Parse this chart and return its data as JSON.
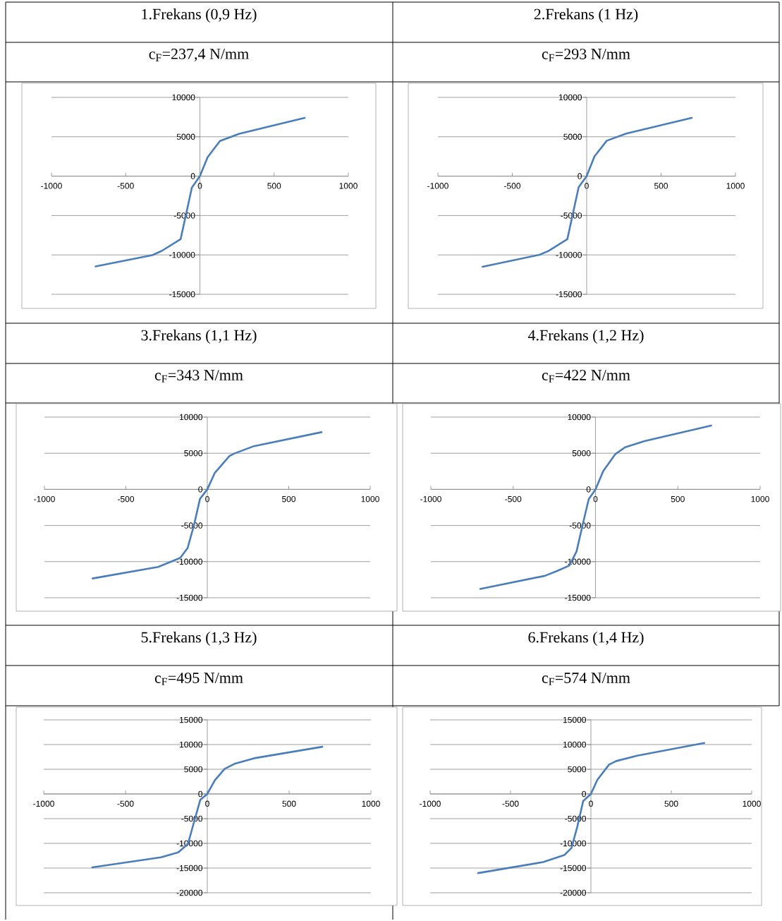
{
  "chart_data": [
    {
      "type": "line",
      "title": "1.Frekans (0,9 Hz)",
      "subtitle": "c$_{F}$=237,4 N/mm",
      "x": [
        -703,
        -320,
        -257,
        -130,
        -54,
        0,
        52,
        135,
        266,
        706
      ],
      "values": [
        -11470,
        -10030,
        -9490,
        -8000,
        -1440,
        0,
        2400,
        4460,
        5390,
        7400
      ],
      "color": "#4a7ebb",
      "xlim": [
        -1000,
        1000
      ],
      "ylim": [
        -15000,
        10000
      ],
      "xticks": [
        -1000,
        -500,
        0,
        500,
        1000
      ],
      "yticks": [
        -15000,
        -10000,
        -5000,
        0,
        5000,
        10000
      ],
      "grid": "y",
      "marker": "none"
    },
    {
      "type": "line",
      "title": "2.Frekans (1 Hz)",
      "subtitle": "c$_{F}$=293 N/mm",
      "x": [
        -700,
        -320,
        -257,
        -130,
        -54,
        0,
        52,
        135,
        266,
        706
      ],
      "values": [
        -11500,
        -10000,
        -9500,
        -8000,
        -1400,
        0,
        2500,
        4500,
        5400,
        7400
      ],
      "color": "#4a7ebb",
      "xlim": [
        -1000,
        1000
      ],
      "ylim": [
        -15000,
        10000
      ],
      "xticks": [
        -1000,
        -500,
        0,
        500,
        1000
      ],
      "yticks": [
        -15000,
        -10000,
        -5000,
        0,
        5000,
        10000
      ],
      "grid": "y",
      "marker": "none"
    },
    {
      "type": "line",
      "title": "3.Frekans (1,1 Hz)",
      "subtitle": "c$_{F}$=343 N/mm",
      "x": [
        -704,
        -301,
        -166,
        -121,
        -83,
        -45,
        0,
        45,
        136,
        166,
        286,
        701
      ],
      "values": [
        -12330,
        -10730,
        -9480,
        -8120,
        -5060,
        -1320,
        0,
        2240,
        4620,
        4960,
        5980,
        7910
      ],
      "color": "#4a7ebb",
      "xlim": [
        -1000,
        1000
      ],
      "ylim": [
        -15000,
        10000
      ],
      "xticks": [
        -1000,
        -500,
        0,
        500,
        1000
      ],
      "yticks": [
        -15000,
        -10000,
        -5000,
        0,
        5000,
        10000
      ],
      "grid": "y",
      "marker": "none"
    },
    {
      "type": "line",
      "title": "4.Frekans (1,2 Hz)",
      "subtitle": "c$_{F}$=422 N/mm",
      "x": [
        -700,
        -307,
        -233,
        -159,
        -115,
        -78,
        -41,
        0,
        47,
        121,
        180,
        298,
        703
      ],
      "values": [
        -13780,
        -11960,
        -11290,
        -10550,
        -8590,
        -4890,
        -1350,
        0,
        2530,
        4890,
        5830,
        6670,
        8830
      ],
      "color": "#4a7ebb",
      "xlim": [
        -1000,
        1000
      ],
      "ylim": [
        -15000,
        10000
      ],
      "xticks": [
        -1000,
        -500,
        0,
        500,
        1000
      ],
      "yticks": [
        -15000,
        -10000,
        -5000,
        0,
        5000,
        10000
      ],
      "grid": "y",
      "marker": "none"
    },
    {
      "type": "line",
      "title": "5.Frekans (1,3 Hz)",
      "subtitle": "c$_{F}$=495 N/mm",
      "x": [
        -703,
        -283,
        -178,
        -118,
        -81,
        -43,
        0,
        46,
        106,
        166,
        286,
        703
      ],
      "values": [
        -14850,
        -12820,
        -11830,
        -10100,
        -5640,
        -1190,
        0,
        2770,
        5100,
        6090,
        7230,
        9550
      ],
      "color": "#4a7ebb",
      "xlim": [
        -1000,
        1000
      ],
      "ylim": [
        -20000,
        15000
      ],
      "xticks": [
        -1000,
        -500,
        0,
        500,
        1000
      ],
      "yticks": [
        -20000,
        -15000,
        -10000,
        -5000,
        0,
        5000,
        10000,
        15000
      ],
      "grid": "y",
      "marker": "none"
    },
    {
      "type": "line",
      "title": "6.Frekans (1,4 Hz)",
      "subtitle": "c$_{F}$=574 N/mm",
      "x": [
        -702,
        -297,
        -165,
        -121,
        -85,
        -48,
        0,
        40,
        113,
        157,
        288,
        705
      ],
      "values": [
        -16020,
        -13790,
        -12360,
        -10940,
        -6660,
        -1430,
        0,
        2850,
        5940,
        6660,
        7750,
        10320
      ],
      "color": "#4a7ebb",
      "xlim": [
        -1000,
        1000
      ],
      "ylim": [
        -20000,
        15000
      ],
      "xticks": [
        -1000,
        -500,
        0,
        500,
        1000
      ],
      "yticks": [
        -20000,
        -15000,
        -10000,
        -5000,
        0,
        5000,
        10000,
        15000
      ],
      "grid": "y",
      "marker": "none"
    }
  ]
}
